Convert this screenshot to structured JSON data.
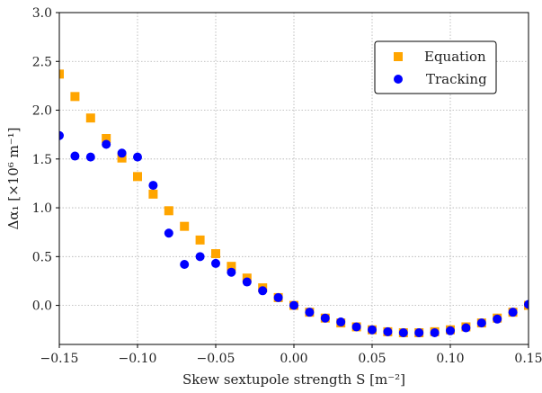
{
  "chart_data": {
    "type": "scatter",
    "xlabel": "Skew sextupole strength S  [m⁻²]",
    "ylabel": "Δα₁ [×10⁶ m⁻¹]",
    "xlim": [
      -0.15,
      0.15
    ],
    "ylim": [
      -0.4,
      3.0
    ],
    "xticks": [
      -0.15,
      -0.1,
      -0.05,
      0.0,
      0.05,
      0.1,
      0.15
    ],
    "xtick_labels": [
      "−0.15",
      "−0.10",
      "−0.05",
      "0.00",
      "0.05",
      "0.10",
      "0.15"
    ],
    "yticks": [
      0.0,
      0.5,
      1.0,
      1.5,
      2.0,
      2.5,
      3.0
    ],
    "ytick_labels": [
      "0.0",
      "0.5",
      "1.0",
      "1.5",
      "2.0",
      "2.5",
      "3.0"
    ],
    "grid": true,
    "legend_position": "top-right",
    "series": [
      {
        "name": "Equation",
        "marker": "square",
        "color": "#FFA500",
        "x": [
          -0.15,
          -0.14,
          -0.13,
          -0.12,
          -0.11,
          -0.1,
          -0.09,
          -0.08,
          -0.07,
          -0.06,
          -0.05,
          -0.04,
          -0.03,
          -0.02,
          -0.01,
          0.0,
          0.01,
          0.02,
          0.03,
          0.04,
          0.05,
          0.06,
          0.07,
          0.08,
          0.09,
          0.1,
          0.11,
          0.12,
          0.13,
          0.14,
          0.15
        ],
        "y": [
          2.37,
          2.14,
          1.92,
          1.71,
          1.51,
          1.32,
          1.14,
          0.97,
          0.81,
          0.67,
          0.53,
          0.4,
          0.28,
          0.18,
          0.08,
          0.0,
          -0.07,
          -0.13,
          -0.18,
          -0.22,
          -0.25,
          -0.27,
          -0.28,
          -0.28,
          -0.27,
          -0.25,
          -0.22,
          -0.18,
          -0.13,
          -0.07,
          0.0
        ]
      },
      {
        "name": "Tracking",
        "marker": "circle",
        "color": "#0000FF",
        "x": [
          -0.15,
          -0.14,
          -0.13,
          -0.12,
          -0.11,
          -0.1,
          -0.09,
          -0.08,
          -0.07,
          -0.06,
          -0.05,
          -0.04,
          -0.03,
          -0.02,
          -0.01,
          0.0,
          0.01,
          0.02,
          0.03,
          0.04,
          0.05,
          0.06,
          0.07,
          0.08,
          0.09,
          0.1,
          0.11,
          0.12,
          0.13,
          0.14,
          0.15
        ],
        "y": [
          1.74,
          1.53,
          1.52,
          1.65,
          1.56,
          1.52,
          1.23,
          0.74,
          0.42,
          0.5,
          0.43,
          0.34,
          0.24,
          0.15,
          0.08,
          0.0,
          -0.07,
          -0.13,
          -0.17,
          -0.22,
          -0.25,
          -0.27,
          -0.28,
          -0.28,
          -0.28,
          -0.26,
          -0.23,
          -0.18,
          -0.14,
          -0.07,
          0.01
        ]
      }
    ]
  }
}
